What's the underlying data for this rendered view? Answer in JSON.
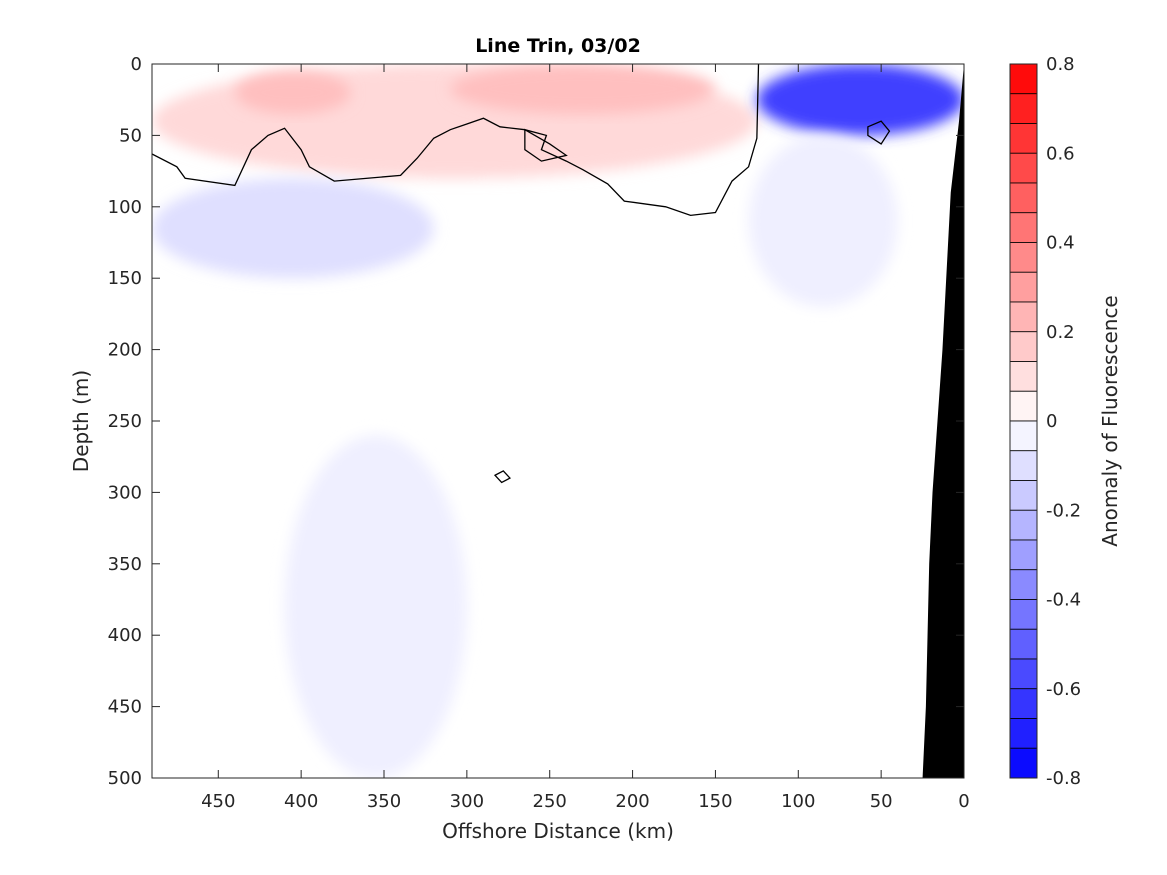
{
  "chart_data": {
    "type": "heatmap",
    "title": "Line Trin, 03/02",
    "xlabel": "Offshore Distance (km)",
    "ylabel": "Depth (m)",
    "xlim": [
      490,
      0
    ],
    "ylim": [
      0,
      500
    ],
    "x_reversed": true,
    "y_reversed": true,
    "x_ticks": [
      450,
      400,
      350,
      300,
      250,
      200,
      150,
      100,
      50,
      0
    ],
    "y_ticks": [
      0,
      50,
      100,
      150,
      200,
      250,
      300,
      350,
      400,
      450,
      500
    ],
    "colorbar": {
      "label": "Anomaly of Fluorescence",
      "limits": [
        -0.8,
        0.8
      ],
      "ticks": [
        0.8,
        0.6,
        0.4,
        0.2,
        0,
        -0.2,
        -0.4,
        -0.6,
        -0.8
      ],
      "tick_labels": [
        "0.8",
        "0.6",
        "0.4",
        "0.2",
        "0",
        "-0.2",
        "-0.4",
        "-0.6",
        "-0.8"
      ],
      "levels": 24,
      "colormap": "blue-white-red",
      "positive_color": "#ff0000",
      "negative_color": "#0000ff",
      "zero_color": "#ffffff"
    },
    "features": [
      {
        "sign": "positive",
        "value": 0.12,
        "x_range": [
          490,
          125
        ],
        "depth_range": [
          0,
          80
        ],
        "description_hint": "near-surface positive band"
      },
      {
        "sign": "positive",
        "value": 0.2,
        "x_range": [
          440,
          370
        ],
        "depth_range": [
          5,
          35
        ]
      },
      {
        "sign": "positive",
        "value": 0.2,
        "x_range": [
          310,
          150
        ],
        "depth_range": [
          0,
          35
        ]
      },
      {
        "sign": "negative",
        "value": -0.6,
        "x_range": [
          125,
          0
        ],
        "depth_range": [
          0,
          50
        ]
      },
      {
        "sign": "negative",
        "value": -0.1,
        "x_range": [
          490,
          320
        ],
        "depth_range": [
          80,
          150
        ]
      },
      {
        "sign": "negative",
        "value": -0.05,
        "x_range": [
          130,
          40
        ],
        "depth_range": [
          50,
          170
        ]
      },
      {
        "sign": "negative",
        "value": -0.05,
        "x_range": [
          410,
          300
        ],
        "depth_range": [
          260,
          500
        ]
      }
    ],
    "zero_contour": [
      [
        490,
        63
      ],
      [
        475,
        72
      ],
      [
        470,
        80
      ],
      [
        440,
        85
      ],
      [
        430,
        60
      ],
      [
        420,
        50
      ],
      [
        410,
        45
      ],
      [
        400,
        60
      ],
      [
        395,
        72
      ],
      [
        380,
        82
      ],
      [
        360,
        80
      ],
      [
        340,
        78
      ],
      [
        330,
        66
      ],
      [
        320,
        52
      ],
      [
        310,
        46
      ],
      [
        300,
        42
      ],
      [
        290,
        38
      ],
      [
        280,
        44
      ],
      [
        265,
        46
      ],
      [
        252,
        50
      ],
      [
        255,
        60
      ],
      [
        240,
        68
      ],
      [
        230,
        74
      ],
      [
        215,
        84
      ],
      [
        205,
        96
      ],
      [
        180,
        100
      ],
      [
        165,
        106
      ],
      [
        150,
        104
      ],
      [
        140,
        82
      ],
      [
        130,
        72
      ],
      [
        125,
        52
      ],
      [
        124,
        0
      ]
    ],
    "bathymetry": {
      "color": "#000000",
      "profile": [
        [
          0,
          0
        ],
        [
          3,
          40
        ],
        [
          8,
          90
        ],
        [
          13,
          200
        ],
        [
          19,
          300
        ],
        [
          21,
          350
        ],
        [
          22,
          400
        ],
        [
          23,
          450
        ],
        [
          25,
          500
        ]
      ]
    }
  }
}
